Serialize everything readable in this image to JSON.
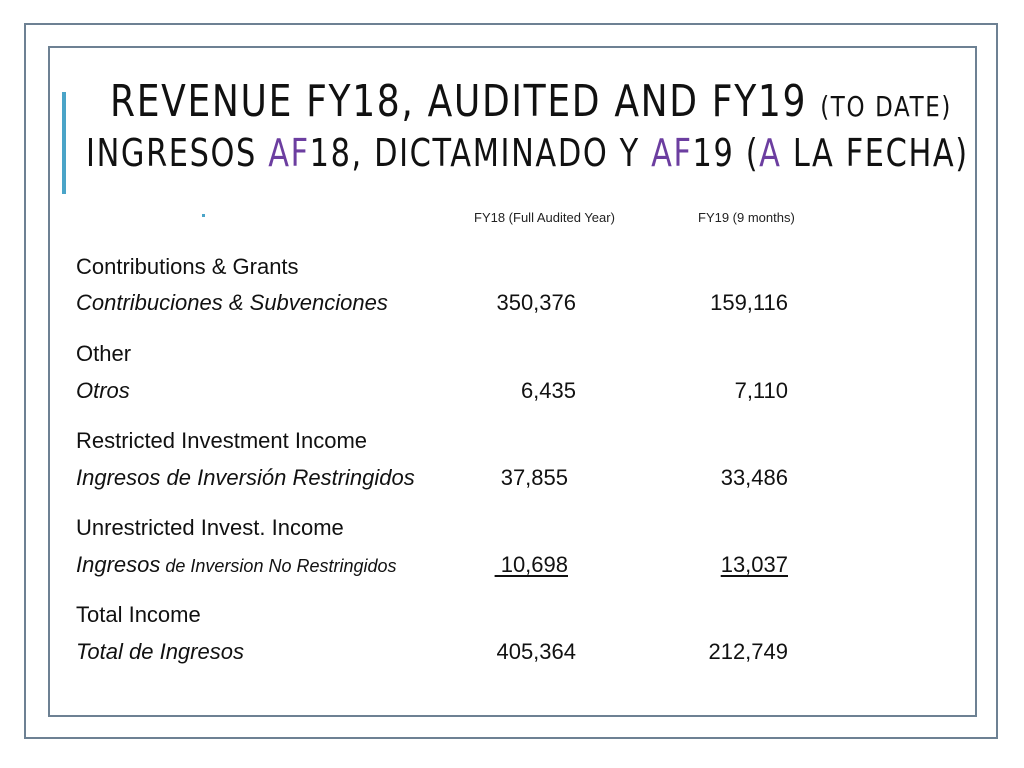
{
  "title": {
    "line1_main": "Revenue FY18, Audited and FY19",
    "line1_small": "(to date)",
    "line2_a": "Ingresos ",
    "line2_b": "AF",
    "line2_c": "18, Dictaminado y ",
    "line2_d": "AF",
    "line2_e": "19 (",
    "line2_f": "A",
    "line2_g": " la Fecha)"
  },
  "columns": {
    "fy18": "FY18 (Full Audited Year)",
    "fy19": "FY19 (9 months)"
  },
  "rows": [
    {
      "en": "Contributions & Grants",
      "es": "Contribuciones & Subvenciones",
      "fy18": "350,376",
      "fy19": "159,116"
    },
    {
      "en": "Other",
      "es": "Otros",
      "fy18": "6,435",
      "fy19": "7,110"
    },
    {
      "en": "Restricted Investment Income",
      "es": "Ingresos de Inversión Restringidos",
      "fy18": "37,855",
      "fy19": "33,486"
    },
    {
      "en": "Unrestricted Invest. Income",
      "es_a": "Ingresos",
      "es_b": " de Inversion No Restringidos",
      "fy18": " 10,698",
      "fy19": "13,037"
    },
    {
      "en": "Total Income",
      "es": "Total de Ingresos",
      "fy18": "405,364",
      "fy19": "212,749"
    }
  ],
  "colors": {
    "border": "#6d8193",
    "accent": "#4aa4c8",
    "purple": "#6c3ea0"
  }
}
